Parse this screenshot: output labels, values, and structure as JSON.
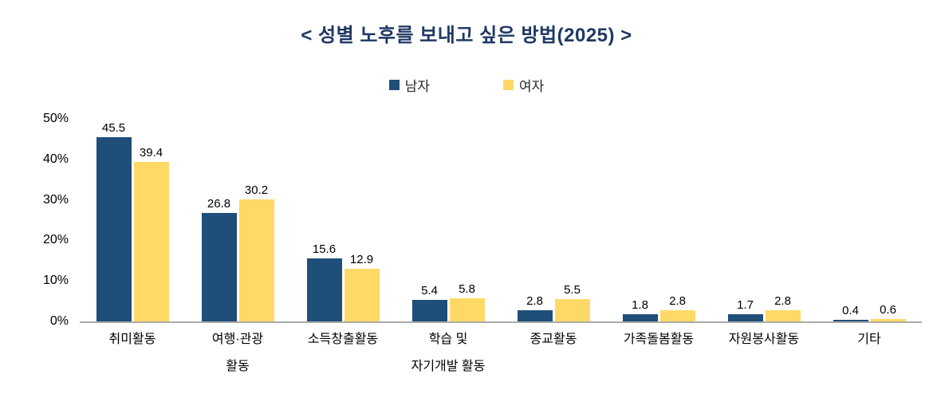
{
  "page": {
    "title": "< 성별 노후를 보내고 싶은 방법(2025) >"
  },
  "colors": {
    "title": "#1F3864",
    "axis_line": "#ABABAB",
    "label_text": "#000000"
  },
  "chart_data": {
    "type": "bar",
    "title": "< 성별 노후를 보내고 싶은 방법(2025) >",
    "categories": [
      "취미활동",
      "여행·관광\n활동",
      "소득창출활동",
      "학습 및\n자기개발 활동",
      "종교활동",
      "가족돌봄활동",
      "자원봉사활동",
      "기타"
    ],
    "series": [
      {
        "name": "남자",
        "color": "#1F4E79",
        "values": [
          45.5,
          26.8,
          15.6,
          5.4,
          2.8,
          1.8,
          1.7,
          0.4
        ]
      },
      {
        "name": "여자",
        "color": "#FFD965",
        "values": [
          39.4,
          30.2,
          12.9,
          5.8,
          5.5,
          2.8,
          2.8,
          0.6
        ]
      }
    ],
    "xlabel": "",
    "ylabel": "",
    "ylim": [
      0,
      50
    ],
    "y_ticks": [
      "0%",
      "10%",
      "20%",
      "30%",
      "40%",
      "50%"
    ],
    "grid": false,
    "legend_position": "top-center",
    "value_labels": true
  }
}
